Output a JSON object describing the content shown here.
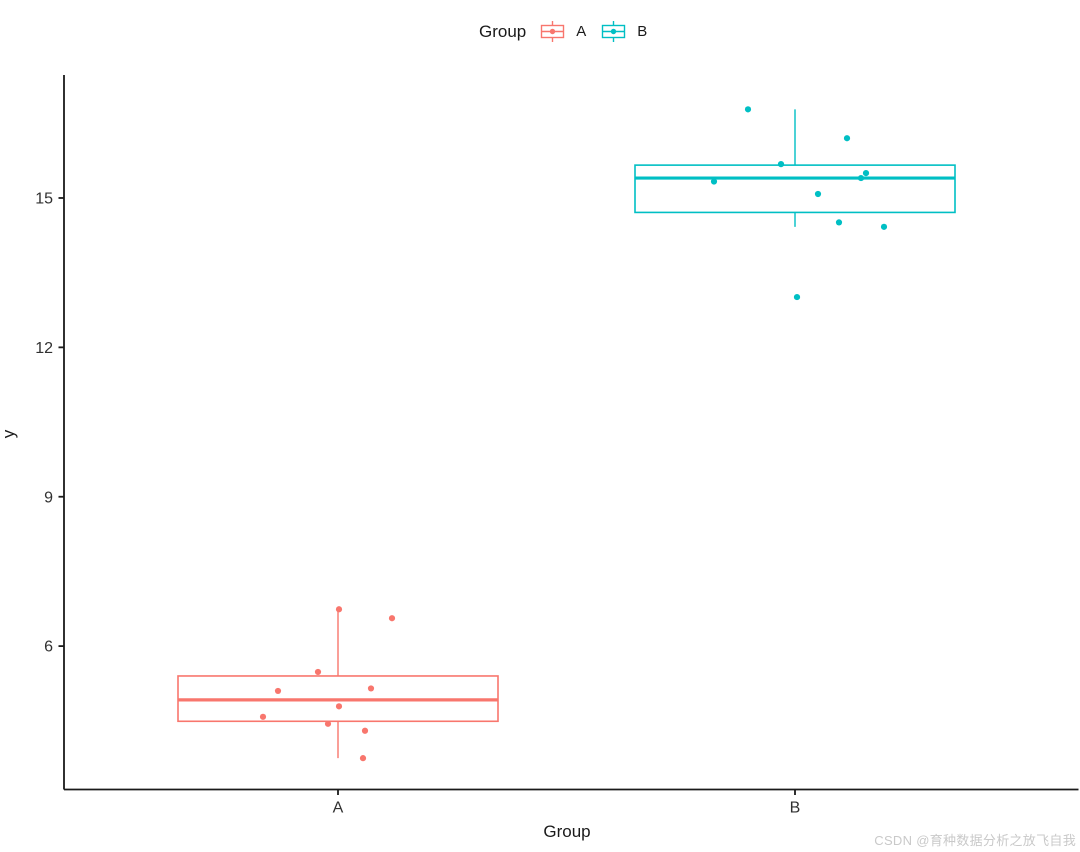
{
  "watermark": "CSDN @育种数据分析之放飞自我",
  "chart_data": {
    "type": "boxplot",
    "subtype": "boxplot-with-jitter",
    "xlabel": "Group",
    "ylabel": "y",
    "categories": [
      "A",
      "B"
    ],
    "y_ticks": [
      6,
      9,
      12,
      15
    ],
    "y_domain": [
      3.12,
      17.47
    ],
    "grid": false,
    "legend": {
      "title": "Group",
      "position": "top",
      "entries": [
        {
          "label": "A",
          "color": "#F8766D"
        },
        {
          "label": "B",
          "color": "#00BFC4"
        }
      ]
    },
    "groups": [
      {
        "name": "A",
        "color": "#F8766D",
        "box": {
          "q1": 4.49,
          "median": 4.92,
          "q3": 5.4,
          "whisker_low": 3.75,
          "whisker_high": 6.74
        },
        "points": [
          {
            "y": 6.74,
            "jx": 1
          },
          {
            "y": 6.56,
            "jx": 54
          },
          {
            "y": 5.48,
            "jx": -20
          },
          {
            "y": 5.15,
            "jx": 33
          },
          {
            "y": 5.1,
            "jx": -60
          },
          {
            "y": 4.79,
            "jx": 1
          },
          {
            "y": 4.58,
            "jx": -75
          },
          {
            "y": 4.44,
            "jx": -10
          },
          {
            "y": 4.3,
            "jx": 27
          },
          {
            "y": 3.75,
            "jx": 25
          }
        ]
      },
      {
        "name": "B",
        "color": "#00BFC4",
        "box": {
          "q1": 14.71,
          "median": 15.4,
          "q3": 15.66,
          "whisker_low": 14.42,
          "whisker_high": 16.78
        },
        "points": [
          {
            "y": 16.78,
            "jx": -47
          },
          {
            "y": 16.2,
            "jx": 52
          },
          {
            "y": 15.68,
            "jx": -14
          },
          {
            "y": 15.5,
            "jx": 71
          },
          {
            "y": 15.4,
            "jx": 66
          },
          {
            "y": 15.33,
            "jx": -81
          },
          {
            "y": 15.08,
            "jx": 23
          },
          {
            "y": 14.51,
            "jx": 44
          },
          {
            "y": 14.42,
            "jx": 89
          },
          {
            "y": 13.01,
            "jx": 2
          }
        ]
      }
    ]
  }
}
